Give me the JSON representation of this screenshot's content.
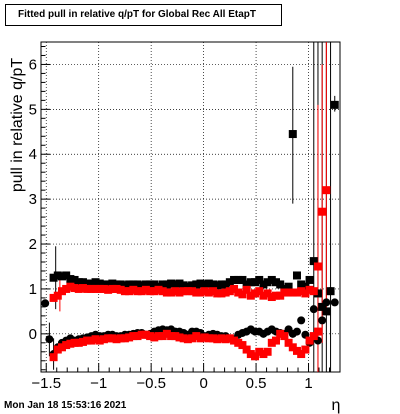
{
  "title": "Fitted pull in relative q/pT for Global Rec All EtapT",
  "footer": "Mon Jan 18 15:53:16 2021",
  "chart_data": {
    "type": "scatter",
    "title": "Fitted pull in relative q/pT for Global Rec All EtapT",
    "xlabel": "η",
    "ylabel": "pull in relative q/pT",
    "xlim": [
      -1.55,
      1.3
    ],
    "ylim": [
      -0.85,
      6.5
    ],
    "grid": true,
    "x_ticks": [
      "−1.5",
      "−1",
      "−0.5",
      "0",
      "0.5",
      "1"
    ],
    "y_ticks": [
      "0",
      "1",
      "2",
      "3",
      "4",
      "5",
      "6"
    ],
    "colors": {
      "black": "#000000",
      "red": "#ff0000"
    },
    "series": [
      {
        "marker": "square",
        "color": "#000000",
        "x": [
          -1.43,
          -1.39,
          -1.35,
          -1.31,
          -1.27,
          -1.23,
          -1.19,
          -1.15,
          -1.11,
          -1.07,
          -1.03,
          -0.99,
          -0.95,
          -0.91,
          -0.87,
          -0.83,
          -0.79,
          -0.75,
          -0.71,
          -0.67,
          -0.63,
          -0.59,
          -0.55,
          -0.51,
          -0.47,
          -0.43,
          -0.39,
          -0.35,
          -0.31,
          -0.27,
          -0.23,
          -0.19,
          -0.15,
          -0.11,
          -0.07,
          -0.03,
          0.01,
          0.05,
          0.09,
          0.13,
          0.17,
          0.21,
          0.25,
          0.29,
          0.33,
          0.37,
          0.41,
          0.45,
          0.49,
          0.53,
          0.57,
          0.61,
          0.65,
          0.69,
          0.73,
          0.77,
          0.81,
          0.85,
          0.89,
          0.93,
          0.97,
          1.01,
          1.05,
          1.09,
          1.13,
          1.17,
          1.21,
          1.25
        ],
        "y": [
          1.25,
          1.3,
          1.28,
          1.3,
          1.22,
          1.2,
          1.15,
          1.15,
          1.12,
          1.12,
          1.15,
          1.12,
          1.1,
          1.1,
          1.12,
          1.1,
          1.1,
          1.08,
          1.1,
          1.1,
          1.1,
          1.08,
          1.1,
          1.1,
          1.1,
          1.05,
          1.1,
          1.1,
          1.12,
          1.1,
          1.12,
          1.08,
          1.05,
          1.08,
          1.1,
          1.12,
          1.1,
          1.12,
          1.1,
          1.08,
          1.1,
          1.1,
          1.15,
          1.2,
          1.2,
          1.2,
          1.1,
          1.15,
          1.15,
          1.2,
          1.1,
          1.15,
          1.2,
          1.15,
          1.1,
          1.0,
          1.05,
          4.45,
          1.3,
          1.1,
          1.05,
          1.2,
          1.62,
          0.9,
          0.6,
          0.5,
          0.95,
          5.1
        ]
      },
      {
        "marker": "square",
        "color": "#ff0000",
        "x": [
          -1.43,
          -1.39,
          -1.35,
          -1.31,
          -1.27,
          -1.23,
          -1.19,
          -1.15,
          -1.11,
          -1.07,
          -1.03,
          -0.99,
          -0.95,
          -0.91,
          -0.87,
          -0.83,
          -0.79,
          -0.75,
          -0.71,
          -0.67,
          -0.63,
          -0.59,
          -0.55,
          -0.51,
          -0.47,
          -0.43,
          -0.39,
          -0.35,
          -0.31,
          -0.27,
          -0.23,
          -0.19,
          -0.15,
          -0.11,
          -0.07,
          -0.03,
          0.01,
          0.05,
          0.09,
          0.13,
          0.17,
          0.21,
          0.25,
          0.29,
          0.33,
          0.37,
          0.41,
          0.45,
          0.49,
          0.53,
          0.57,
          0.61,
          0.65,
          0.69,
          0.73,
          0.77,
          0.81,
          0.85,
          0.89,
          0.93,
          0.97,
          1.01,
          1.05,
          1.09,
          1.13,
          1.17
        ],
        "y": [
          0.8,
          0.85,
          0.95,
          1.0,
          1.05,
          1.02,
          1.0,
          1.02,
          1.0,
          1.0,
          1.0,
          1.0,
          1.0,
          0.98,
          1.0,
          1.0,
          0.98,
          0.95,
          0.95,
          0.98,
          0.95,
          0.95,
          0.98,
          0.95,
          0.95,
          0.98,
          0.95,
          0.92,
          0.92,
          0.95,
          0.92,
          0.95,
          0.95,
          0.95,
          0.92,
          0.92,
          0.95,
          0.92,
          0.95,
          0.9,
          0.9,
          0.92,
          0.95,
          1.0,
          0.92,
          0.88,
          0.98,
          0.85,
          0.9,
          0.95,
          0.85,
          0.9,
          0.82,
          0.85,
          0.85,
          0.92,
          0.92,
          0.92,
          0.92,
          0.95,
          0.9,
          0.98,
          0.95,
          1.5,
          2.72,
          3.2
        ]
      },
      {
        "marker": "circle",
        "color": "#000000",
        "x": [
          -1.51,
          -1.47,
          -1.43,
          -1.39,
          -1.35,
          -1.31,
          -1.27,
          -1.23,
          -1.19,
          -1.15,
          -1.11,
          -1.07,
          -1.03,
          -0.99,
          -0.95,
          -0.91,
          -0.87,
          -0.83,
          -0.79,
          -0.75,
          -0.71,
          -0.67,
          -0.63,
          -0.59,
          -0.55,
          -0.51,
          -0.47,
          -0.43,
          -0.39,
          -0.35,
          -0.31,
          -0.27,
          -0.23,
          -0.19,
          -0.15,
          -0.11,
          -0.07,
          -0.03,
          0.01,
          0.05,
          0.09,
          0.13,
          0.17,
          0.21,
          0.25,
          0.29,
          0.33,
          0.37,
          0.41,
          0.45,
          0.49,
          0.53,
          0.57,
          0.61,
          0.65,
          0.69,
          0.73,
          0.77,
          0.81,
          0.85,
          0.89,
          0.93,
          0.97,
          1.01,
          1.05,
          1.09,
          1.13,
          1.17,
          1.21,
          1.25
        ],
        "y": [
          0.68,
          -0.12,
          -0.45,
          -0.3,
          -0.2,
          -0.15,
          -0.1,
          -0.15,
          -0.12,
          -0.1,
          -0.08,
          -0.05,
          -0.02,
          -0.05,
          -0.05,
          -0.02,
          -0.02,
          -0.05,
          -0.05,
          -0.02,
          -0.02,
          0.0,
          0.02,
          0.02,
          -0.02,
          0.0,
          0.05,
          0.08,
          0.1,
          0.08,
          0.1,
          0.05,
          0.05,
          0.02,
          -0.02,
          0.05,
          0.05,
          0.02,
          -0.05,
          -0.02,
          0.0,
          -0.02,
          -0.05,
          -0.05,
          -0.1,
          -0.12,
          -0.02,
          0.02,
          0.05,
          0.1,
          0.05,
          0.05,
          0.0,
          0.05,
          0.1,
          0.05,
          0.02,
          0.0,
          0.1,
          0.0,
          0.05,
          0.3,
          -0.02,
          -0.2,
          0.55,
          -0.15,
          0.3,
          0.7,
          0.95,
          0.7
        ]
      },
      {
        "marker": "square",
        "color": "#ff0000",
        "x": [
          -1.43,
          -1.39,
          -1.35,
          -1.31,
          -1.27,
          -1.23,
          -1.19,
          -1.15,
          -1.11,
          -1.07,
          -1.03,
          -0.99,
          -0.95,
          -0.91,
          -0.87,
          -0.83,
          -0.79,
          -0.75,
          -0.71,
          -0.67,
          -0.63,
          -0.59,
          -0.55,
          -0.51,
          -0.47,
          -0.43,
          -0.39,
          -0.35,
          -0.31,
          -0.27,
          -0.23,
          -0.19,
          -0.15,
          -0.11,
          -0.07,
          -0.03,
          0.01,
          0.05,
          0.09,
          0.13,
          0.17,
          0.21,
          0.25,
          0.29,
          0.33,
          0.37,
          0.41,
          0.45,
          0.49,
          0.53,
          0.57,
          0.61,
          0.65,
          0.69,
          0.73,
          0.77,
          0.81,
          0.85,
          0.89,
          0.93,
          0.97,
          1.01,
          1.05,
          1.09
        ],
        "y": [
          -0.52,
          -0.35,
          -0.3,
          -0.25,
          -0.22,
          -0.2,
          -0.2,
          -0.18,
          -0.15,
          -0.15,
          -0.12,
          -0.15,
          -0.12,
          -0.1,
          -0.1,
          -0.12,
          -0.1,
          -0.1,
          -0.08,
          -0.05,
          -0.05,
          -0.02,
          -0.02,
          -0.05,
          -0.08,
          -0.05,
          -0.05,
          0.0,
          -0.05,
          -0.05,
          -0.08,
          -0.1,
          -0.12,
          -0.1,
          -0.05,
          -0.1,
          -0.08,
          -0.1,
          -0.1,
          -0.12,
          -0.1,
          -0.12,
          -0.1,
          -0.15,
          -0.2,
          -0.25,
          -0.35,
          -0.45,
          -0.5,
          -0.4,
          -0.45,
          -0.4,
          -0.2,
          -0.15,
          0.0,
          -0.05,
          -0.2,
          -0.3,
          -0.38,
          -0.45,
          -0.35,
          -0.15,
          -0.05,
          0.05
        ]
      }
    ],
    "error_bars": [
      {
        "x": 0.85,
        "lo": 2.9,
        "hi": 5.95,
        "color": "#000000"
      },
      {
        "x": 1.05,
        "lo": -0.85,
        "hi": 6.5,
        "color": "#000000"
      },
      {
        "x": 1.09,
        "lo": -0.85,
        "hi": 6.5,
        "color": "#000000"
      },
      {
        "x": 1.13,
        "lo": -0.85,
        "hi": 6.5,
        "color": "#000000"
      },
      {
        "x": 1.17,
        "lo": -0.85,
        "hi": 6.5,
        "color": "#000000"
      },
      {
        "x": 1.21,
        "lo": -0.85,
        "hi": 6.5,
        "color": "#000000"
      },
      {
        "x": 1.25,
        "lo": 4.95,
        "hi": 5.3,
        "color": "#000000"
      },
      {
        "x": 1.09,
        "lo": -0.85,
        "hi": 5.1,
        "color": "#ff0000"
      },
      {
        "x": 1.13,
        "lo": -0.2,
        "hi": 6.0,
        "color": "#ff0000"
      },
      {
        "x": 1.17,
        "lo": 0.5,
        "hi": 6.5,
        "color": "#ff0000"
      },
      {
        "x": -1.47,
        "lo": -0.5,
        "hi": 0.25,
        "color": "#000000"
      },
      {
        "x": -1.43,
        "lo": -0.8,
        "hi": -0.1,
        "color": "#000000"
      },
      {
        "x": -1.41,
        "lo": 0.55,
        "hi": 1.95,
        "color": "#000000"
      },
      {
        "x": -1.37,
        "lo": 0.5,
        "hi": 1.2,
        "color": "#ff0000"
      }
    ]
  }
}
